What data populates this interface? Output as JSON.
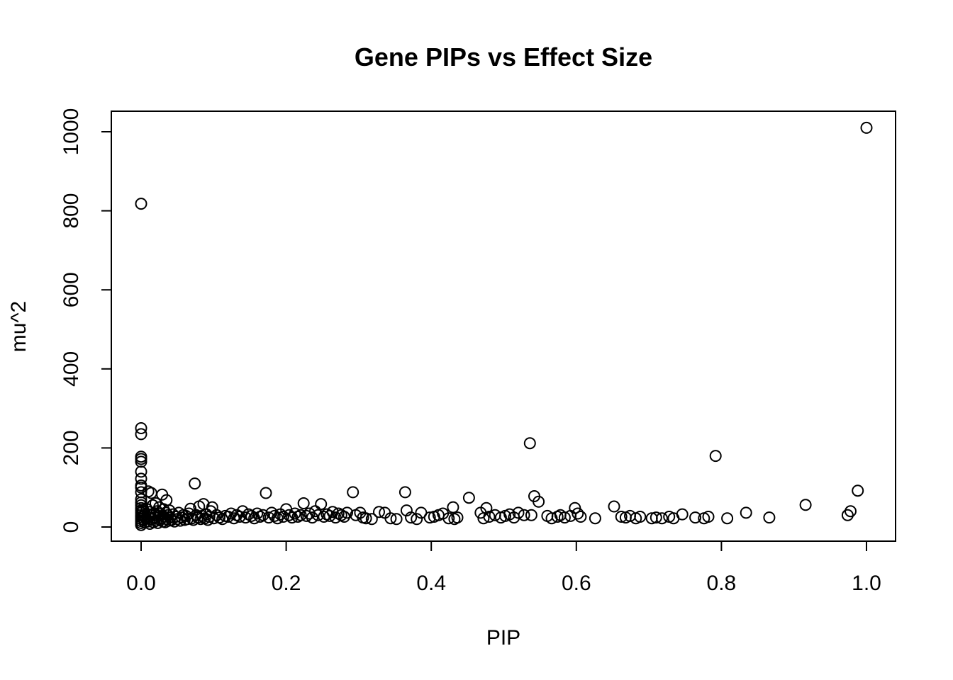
{
  "chart_data": {
    "type": "scatter",
    "title": "Gene PIPs vs Effect Size",
    "xlabel": "PIP",
    "ylabel": "mu^2",
    "xlim": [
      0,
      1.0
    ],
    "ylim": [
      0,
      1010
    ],
    "x_ticks": [
      0.0,
      0.2,
      0.4,
      0.6,
      0.8,
      1.0
    ],
    "x_tick_labels": [
      "0.0",
      "0.2",
      "0.4",
      "0.6",
      "0.8",
      "1.0"
    ],
    "y_ticks": [
      0,
      200,
      400,
      600,
      800,
      1000
    ],
    "y_tick_labels": [
      "0",
      "200",
      "400",
      "600",
      "800",
      "1000"
    ],
    "grid": false,
    "legend": "none",
    "marker": "open-circle",
    "points": [
      [
        1.0,
        1010
      ],
      [
        0.0,
        818
      ],
      [
        0.0,
        250
      ],
      [
        0.0,
        235
      ],
      [
        0.0,
        178
      ],
      [
        0.0,
        172
      ],
      [
        0.0,
        165
      ],
      [
        0.0,
        140
      ],
      [
        0.0,
        122
      ],
      [
        0.0,
        105
      ],
      [
        0.0,
        100
      ],
      [
        0.0,
        88
      ],
      [
        0.0,
        70
      ],
      [
        0.0,
        62
      ],
      [
        0.0,
        55
      ],
      [
        0.0,
        48
      ],
      [
        0.0,
        42
      ],
      [
        0.0,
        36
      ],
      [
        0.0,
        30
      ],
      [
        0.0,
        25
      ],
      [
        0.0,
        20
      ],
      [
        0.0,
        15
      ],
      [
        0.0,
        10
      ],
      [
        0.0,
        5
      ],
      [
        0.002,
        40
      ],
      [
        0.003,
        28
      ],
      [
        0.004,
        18
      ],
      [
        0.005,
        12
      ],
      [
        0.006,
        32
      ],
      [
        0.007,
        22
      ],
      [
        0.008,
        45
      ],
      [
        0.009,
        14
      ],
      [
        0.01,
        90
      ],
      [
        0.01,
        25
      ],
      [
        0.011,
        38
      ],
      [
        0.012,
        8
      ],
      [
        0.013,
        30
      ],
      [
        0.014,
        86
      ],
      [
        0.015,
        20
      ],
      [
        0.016,
        55
      ],
      [
        0.017,
        12
      ],
      [
        0.018,
        35
      ],
      [
        0.019,
        24
      ],
      [
        0.02,
        60
      ],
      [
        0.021,
        16
      ],
      [
        0.022,
        40
      ],
      [
        0.023,
        10
      ],
      [
        0.024,
        28
      ],
      [
        0.025,
        50
      ],
      [
        0.026,
        18
      ],
      [
        0.027,
        33
      ],
      [
        0.028,
        22
      ],
      [
        0.029,
        82
      ],
      [
        0.03,
        14
      ],
      [
        0.031,
        45
      ],
      [
        0.032,
        26
      ],
      [
        0.033,
        12
      ],
      [
        0.034,
        36
      ],
      [
        0.035,
        68
      ],
      [
        0.036,
        20
      ],
      [
        0.037,
        30
      ],
      [
        0.038,
        16
      ],
      [
        0.039,
        42
      ],
      [
        0.04,
        24
      ],
      [
        0.042,
        18
      ],
      [
        0.044,
        32
      ],
      [
        0.046,
        14
      ],
      [
        0.048,
        26
      ],
      [
        0.05,
        20
      ],
      [
        0.052,
        36
      ],
      [
        0.054,
        16
      ],
      [
        0.056,
        24
      ],
      [
        0.058,
        30
      ],
      [
        0.06,
        18
      ],
      [
        0.062,
        28
      ],
      [
        0.064,
        20
      ],
      [
        0.066,
        34
      ],
      [
        0.068,
        46
      ],
      [
        0.07,
        22
      ],
      [
        0.072,
        18
      ],
      [
        0.074,
        110
      ],
      [
        0.076,
        30
      ],
      [
        0.078,
        24
      ],
      [
        0.08,
        52
      ],
      [
        0.082,
        20
      ],
      [
        0.084,
        28
      ],
      [
        0.086,
        58
      ],
      [
        0.088,
        22
      ],
      [
        0.09,
        32
      ],
      [
        0.092,
        18
      ],
      [
        0.094,
        26
      ],
      [
        0.096,
        40
      ],
      [
        0.098,
        50
      ],
      [
        0.1,
        22
      ],
      [
        0.104,
        30
      ],
      [
        0.108,
        24
      ],
      [
        0.112,
        20
      ],
      [
        0.116,
        28
      ],
      [
        0.12,
        26
      ],
      [
        0.124,
        34
      ],
      [
        0.128,
        22
      ],
      [
        0.132,
        30
      ],
      [
        0.136,
        26
      ],
      [
        0.14,
        40
      ],
      [
        0.144,
        24
      ],
      [
        0.148,
        32
      ],
      [
        0.152,
        28
      ],
      [
        0.156,
        22
      ],
      [
        0.16,
        34
      ],
      [
        0.164,
        26
      ],
      [
        0.168,
        30
      ],
      [
        0.172,
        86
      ],
      [
        0.176,
        24
      ],
      [
        0.18,
        36
      ],
      [
        0.184,
        28
      ],
      [
        0.188,
        22
      ],
      [
        0.192,
        32
      ],
      [
        0.196,
        26
      ],
      [
        0.2,
        45
      ],
      [
        0.204,
        30
      ],
      [
        0.208,
        24
      ],
      [
        0.212,
        34
      ],
      [
        0.216,
        26
      ],
      [
        0.22,
        30
      ],
      [
        0.224,
        60
      ],
      [
        0.228,
        28
      ],
      [
        0.232,
        34
      ],
      [
        0.236,
        24
      ],
      [
        0.24,
        40
      ],
      [
        0.244,
        30
      ],
      [
        0.248,
        58
      ],
      [
        0.252,
        26
      ],
      [
        0.256,
        32
      ],
      [
        0.26,
        28
      ],
      [
        0.264,
        38
      ],
      [
        0.268,
        24
      ],
      [
        0.272,
        34
      ],
      [
        0.276,
        30
      ],
      [
        0.28,
        26
      ],
      [
        0.284,
        36
      ],
      [
        0.292,
        88
      ],
      [
        0.296,
        30
      ],
      [
        0.302,
        36
      ],
      [
        0.306,
        24
      ],
      [
        0.31,
        22
      ],
      [
        0.318,
        20
      ],
      [
        0.328,
        38
      ],
      [
        0.336,
        36
      ],
      [
        0.344,
        22
      ],
      [
        0.352,
        20
      ],
      [
        0.364,
        88
      ],
      [
        0.366,
        42
      ],
      [
        0.372,
        24
      ],
      [
        0.38,
        20
      ],
      [
        0.386,
        36
      ],
      [
        0.398,
        24
      ],
      [
        0.404,
        26
      ],
      [
        0.41,
        30
      ],
      [
        0.416,
        34
      ],
      [
        0.424,
        22
      ],
      [
        0.43,
        50
      ],
      [
        0.432,
        20
      ],
      [
        0.436,
        24
      ],
      [
        0.452,
        74
      ],
      [
        0.468,
        36
      ],
      [
        0.472,
        22
      ],
      [
        0.476,
        48
      ],
      [
        0.48,
        26
      ],
      [
        0.488,
        30
      ],
      [
        0.496,
        24
      ],
      [
        0.502,
        28
      ],
      [
        0.508,
        32
      ],
      [
        0.514,
        24
      ],
      [
        0.52,
        36
      ],
      [
        0.528,
        30
      ],
      [
        0.536,
        212
      ],
      [
        0.538,
        30
      ],
      [
        0.542,
        78
      ],
      [
        0.548,
        64
      ],
      [
        0.56,
        28
      ],
      [
        0.566,
        22
      ],
      [
        0.574,
        26
      ],
      [
        0.578,
        30
      ],
      [
        0.584,
        24
      ],
      [
        0.592,
        28
      ],
      [
        0.598,
        48
      ],
      [
        0.602,
        34
      ],
      [
        0.606,
        26
      ],
      [
        0.626,
        22
      ],
      [
        0.652,
        52
      ],
      [
        0.662,
        26
      ],
      [
        0.668,
        24
      ],
      [
        0.674,
        28
      ],
      [
        0.682,
        22
      ],
      [
        0.688,
        26
      ],
      [
        0.704,
        22
      ],
      [
        0.71,
        24
      ],
      [
        0.718,
        22
      ],
      [
        0.728,
        26
      ],
      [
        0.734,
        22
      ],
      [
        0.746,
        32
      ],
      [
        0.764,
        24
      ],
      [
        0.776,
        22
      ],
      [
        0.782,
        26
      ],
      [
        0.792,
        180
      ],
      [
        0.808,
        22
      ],
      [
        0.834,
        36
      ],
      [
        0.866,
        24
      ],
      [
        0.916,
        56
      ],
      [
        0.974,
        30
      ],
      [
        0.978,
        40
      ],
      [
        0.988,
        92
      ]
    ]
  }
}
